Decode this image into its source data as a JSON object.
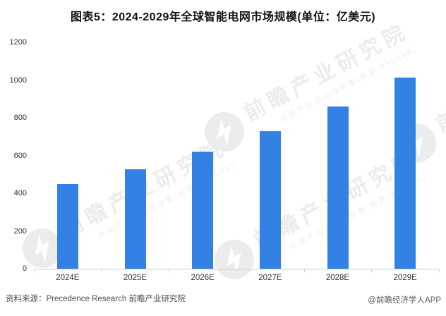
{
  "title": "图表5：2024-2029年全球智能电网市场规模(单位：亿美元)",
  "chart_data": {
    "type": "bar",
    "categories": [
      "2024E",
      "2025E",
      "2026E",
      "2027E",
      "2028E",
      "2029E"
    ],
    "values": [
      447,
      527,
      620,
      730,
      860,
      1013
    ],
    "title": "图表5：2024-2029年全球智能电网市场规模(单位：亿美元)",
    "xlabel": "",
    "ylabel": "",
    "ylim": [
      0,
      1200
    ],
    "yticks": [
      0,
      200,
      400,
      600,
      800,
      1000,
      1200
    ],
    "grid": false,
    "legend": false,
    "bar_color": "#3481e5",
    "axis_color": "#cccccc"
  },
  "watermark": {
    "main": "前瞻产业研究院",
    "sub": "中国产业咨询领导者(股票:839599)",
    "color": "#ececec"
  },
  "footer": {
    "source": "资料来源：Precedence Research 前瞻产业研究院",
    "credit": "@前瞻经济学人APP"
  }
}
